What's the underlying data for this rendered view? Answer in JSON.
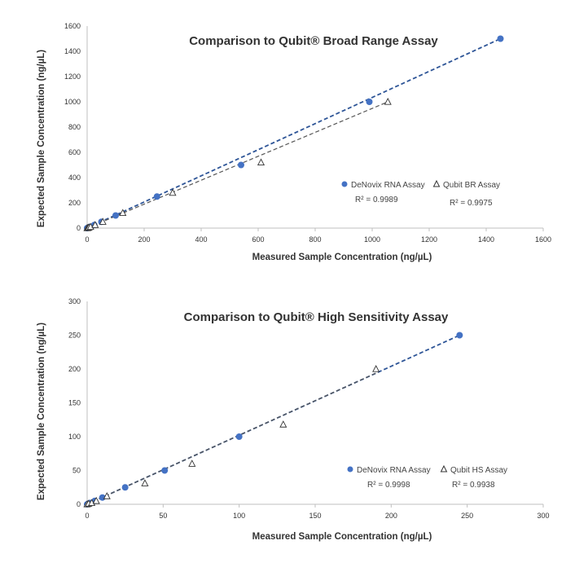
{
  "chart_data": [
    {
      "type": "scatter",
      "title": "Comparison to Qubit® Broad Range Assay",
      "xlabel": "Measured Sample Concentration (ng/µL)",
      "ylabel": "Expected Sample Concentration (ng/µL)",
      "xlim": [
        0,
        1600
      ],
      "ylim": [
        0,
        1600
      ],
      "xticks": [
        0,
        200,
        400,
        600,
        800,
        1000,
        1200,
        1400,
        1600
      ],
      "yticks": [
        0,
        200,
        400,
        600,
        800,
        1000,
        1200,
        1400,
        1600
      ],
      "grid": false,
      "legend_position": "lower-right",
      "series": [
        {
          "name": "DeNovix RNA Assay",
          "marker": "circle",
          "color": "#4472C4",
          "x": [
            0,
            2,
            5,
            10,
            25,
            50,
            100,
            245,
            540,
            990,
            1450
          ],
          "y": [
            0,
            2,
            5,
            10,
            25,
            50,
            100,
            250,
            500,
            1000,
            1500
          ],
          "trendline": {
            "x": [
              0,
              1450
            ],
            "y": [
              0,
              1500
            ],
            "color": "#2E5597"
          },
          "r2": "R² = 0.9989"
        },
        {
          "name": "Qubit BR Assay",
          "marker": "triangle",
          "color": "#555555",
          "x": [
            0,
            3,
            6,
            12,
            28,
            55,
            125,
            300,
            610,
            1055
          ],
          "y": [
            0,
            2,
            5,
            10,
            25,
            50,
            120,
            280,
            520,
            1000
          ],
          "trendline": {
            "x": [
              0,
              1055
            ],
            "y": [
              0,
              1000
            ],
            "color": "#555555"
          },
          "r2": "R² = 0.9975"
        }
      ]
    },
    {
      "type": "scatter",
      "title": "Comparison to Qubit® High Sensitivity Assay",
      "xlabel": "Measured Sample Concentration (ng/µL)",
      "ylabel": "Expected Sample Concentration (ng/µL)",
      "xlim": [
        0,
        300
      ],
      "ylim": [
        0,
        300
      ],
      "xticks": [
        0,
        50,
        100,
        150,
        200,
        250,
        300
      ],
      "yticks": [
        0,
        50,
        100,
        150,
        200,
        250,
        300
      ],
      "grid": false,
      "legend_position": "lower-right",
      "series": [
        {
          "name": "DeNovix RNA Assay",
          "marker": "circle",
          "color": "#4472C4",
          "x": [
            0,
            1,
            2,
            5,
            10,
            25,
            51,
            100,
            245
          ],
          "y": [
            0,
            1,
            2,
            5,
            10,
            25,
            50,
            100,
            250
          ],
          "trendline": {
            "x": [
              0,
              245
            ],
            "y": [
              0,
              250
            ],
            "color": "#2E5597"
          },
          "r2": "R² = 0.9998"
        },
        {
          "name": "Qubit HS Assay",
          "marker": "triangle",
          "color": "#555555",
          "x": [
            0,
            1,
            3,
            6,
            13,
            38,
            69,
            129,
            190
          ],
          "y": [
            0,
            1,
            2,
            5,
            12,
            31,
            60,
            118,
            200
          ],
          "trendline": {
            "x": [
              0,
              190
            ],
            "y": [
              0,
              194
            ],
            "color": "#555555"
          },
          "r2": "R² = 0.9938"
        }
      ]
    }
  ]
}
